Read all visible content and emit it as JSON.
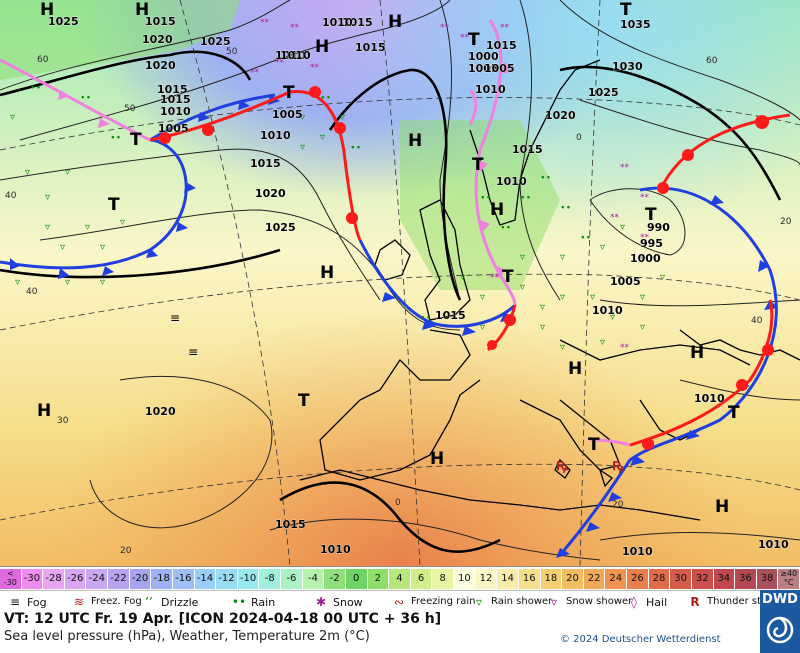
{
  "colors": {
    "cold_front": "#1f3fe0",
    "warm_front": "#ff1a1a",
    "occlusion": "#f080e0",
    "rain_symbol": "#0a8a0a",
    "snow_symbol": "#a0229a"
  },
  "map": {
    "pressure_labels": [
      "1025",
      "1015",
      "1010",
      "1015",
      "1015",
      "1020",
      "1025",
      "1035",
      "1030",
      "1025",
      "1020",
      "1015",
      "1010",
      "1005",
      "1000",
      "1010",
      "1015",
      "1020",
      "1015",
      "1010",
      "1005",
      "1015",
      "1010",
      "1005",
      "1000",
      "995",
      "990",
      "1005",
      "1010",
      "1015",
      "1010",
      "1020",
      "1010",
      "1015",
      "1010",
      "1010",
      "1020",
      "1025",
      "1010",
      "1005",
      "1015",
      "1010"
    ],
    "systems": [
      "H",
      "H",
      "H",
      "H",
      "H",
      "H",
      "H",
      "H",
      "H",
      "H",
      "H",
      "H",
      "T",
      "T",
      "T",
      "T",
      "T",
      "T",
      "T",
      "T",
      "T",
      "T",
      "T"
    ],
    "temp_contour_labels": [
      "60",
      "60",
      "50",
      "40",
      "40",
      "30",
      "20",
      "40",
      "50",
      "20",
      "0",
      "0",
      "20"
    ]
  },
  "scale": {
    "labels": [
      "< -30",
      "-30",
      "-28",
      "-26",
      "-24",
      "-22",
      "-20",
      "-18",
      "-16",
      "-14",
      "-12",
      "-10",
      "-8",
      "-6",
      "-4",
      "-2",
      "0",
      "2",
      "4",
      "6",
      "8",
      "10",
      "12",
      "14",
      "16",
      "18",
      "20",
      "22",
      "24",
      "26",
      "28",
      "30",
      "32",
      "34",
      "36",
      "38",
      "≥40 °C"
    ],
    "colors": [
      "#e06be0",
      "#f08cf0",
      "#e8a6f0",
      "#d8a6f4",
      "#c9a8f2",
      "#b7a3ee",
      "#a7a4ee",
      "#9fb1f2",
      "#9cc0f5",
      "#99cff6",
      "#98dcf4",
      "#98e8ef",
      "#9ff0dc",
      "#a8f2c5",
      "#b6f2ae",
      "#8fe07a",
      "#6fd466",
      "#8fde6a",
      "#b5e77a",
      "#d2ee8c",
      "#e8f3a4",
      "#fdfde0",
      "#fbf6c8",
      "#f9ecaa",
      "#f6df8c",
      "#f4cf75",
      "#f2bd63",
      "#f0a957",
      "#ee9450",
      "#e9804c",
      "#e06c49",
      "#d65c4a",
      "#cc4f4c",
      "#c1484f",
      "#b44953",
      "#a9525a",
      "#b97d83"
    ]
  },
  "legend": {
    "fog": "Fog",
    "freezing_fog": "Freez. Fog",
    "drizzle": "Drizzle",
    "rain": "Rain",
    "snow": "Snow",
    "freezing_rain": "Freezing rain",
    "rain_shower": "Rain shower",
    "snow_shower": "Snow shower",
    "hail": "Hail",
    "thunderstorm": "Thunder storm"
  },
  "info": {
    "line1": "VT: 12 UTC Fr.  19 Apr. [ICON 2024-04-18  00 UTC + 36 h]",
    "line2": "Sea level pressure (hPa), Weather, Temperature 2m (°C)",
    "copyright": "© 2024 Deutscher Wetterdienst",
    "logo": "DWD"
  }
}
